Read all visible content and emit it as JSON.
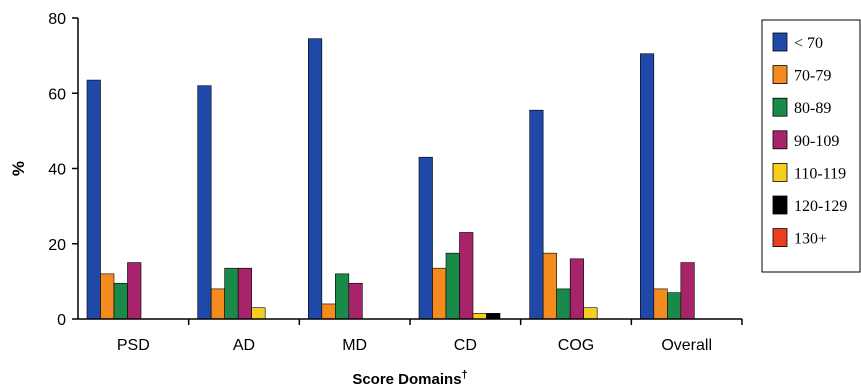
{
  "chart_data": {
    "type": "bar",
    "title": "",
    "xlabel": "Score Domains",
    "xlabel_marker": "†",
    "ylabel": "%",
    "ylim": [
      0,
      80
    ],
    "yticks": [
      "0",
      "20",
      "40",
      "60",
      "80"
    ],
    "grid": false,
    "legend_position": "right",
    "categories": [
      "PSD",
      "AD",
      "MD",
      "CD",
      "COG",
      "Overall"
    ],
    "series": [
      {
        "name": "< 70",
        "color": "#1f49a8",
        "values": [
          63.5,
          62,
          74.5,
          43,
          55.5,
          70.5
        ]
      },
      {
        "name": "70-79",
        "color": "#f58a1f",
        "values": [
          12,
          8,
          4,
          13.5,
          17.5,
          8
        ]
      },
      {
        "name": "80-89",
        "color": "#1a8a4a",
        "values": [
          9.5,
          13.5,
          12,
          17.5,
          8,
          7
        ]
      },
      {
        "name": "90-109",
        "color": "#a8246a",
        "values": [
          15,
          13.5,
          9.5,
          23,
          16,
          15
        ]
      },
      {
        "name": "110-119",
        "color": "#f6cf1d",
        "values": [
          0,
          3,
          0,
          1.5,
          3,
          0
        ]
      },
      {
        "name": "120-129",
        "color": "#000000",
        "values": [
          0,
          0,
          0,
          1.5,
          0,
          0
        ]
      },
      {
        "name": "130+",
        "color": "#e8401c",
        "values": [
          0,
          0,
          0,
          0,
          0,
          0
        ]
      }
    ]
  }
}
